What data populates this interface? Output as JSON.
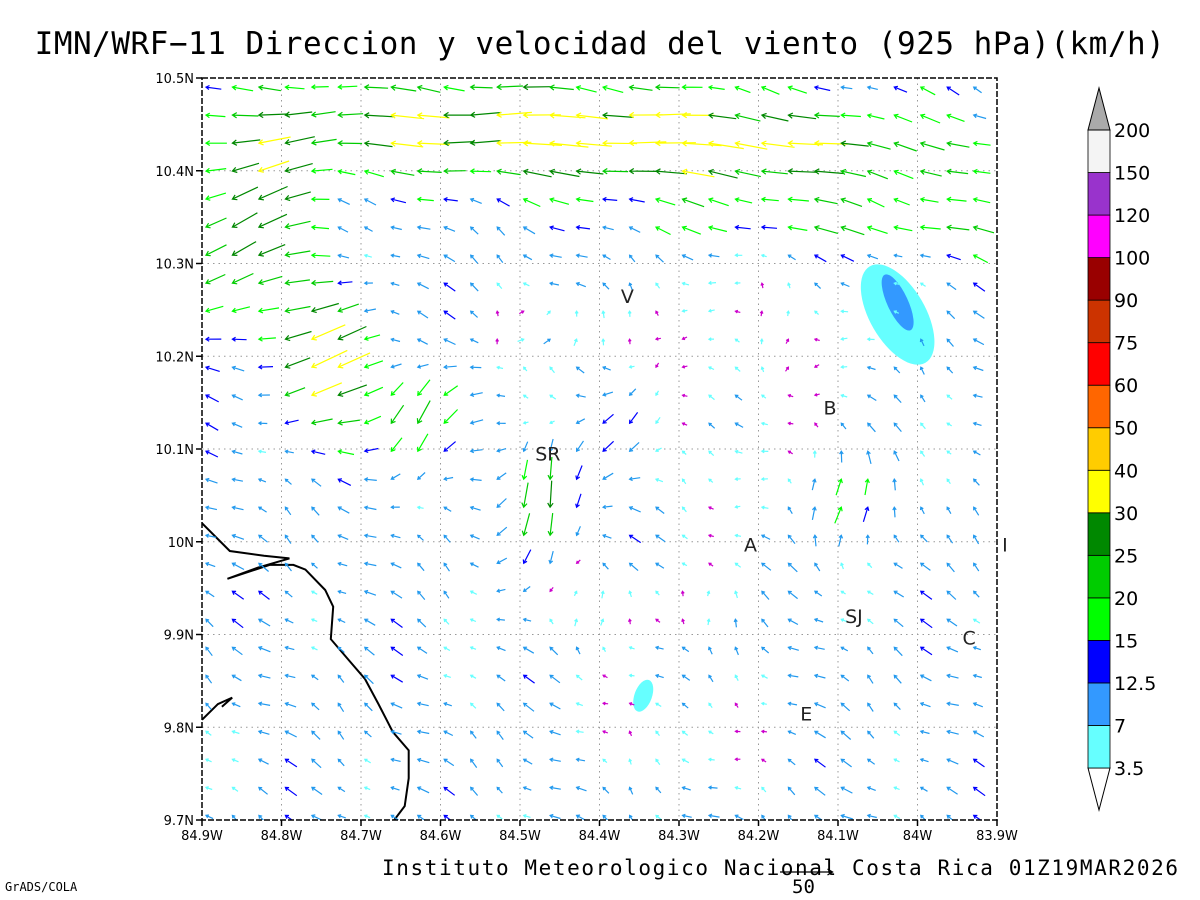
{
  "title": "IMN/WRF−11 Direccion y velocidad del viento (925 hPa)(km/h)",
  "footer": "Instituto Meteorologico Nacional Costa Rica 01Z19MAR2026",
  "credit": "GrADS/COLA",
  "reference_vector": {
    "value": "50",
    "speed_kmh": 50
  },
  "map": {
    "lon_range": [
      -84.9,
      -83.9
    ],
    "lat_range": [
      9.7,
      10.5
    ],
    "x_ticks": [
      {
        "lon": -84.9,
        "label": "84.9W"
      },
      {
        "lon": -84.8,
        "label": "84.8W"
      },
      {
        "lon": -84.7,
        "label": "84.7W"
      },
      {
        "lon": -84.6,
        "label": "84.6W"
      },
      {
        "lon": -84.5,
        "label": "84.5W"
      },
      {
        "lon": -84.4,
        "label": "84.4W"
      },
      {
        "lon": -84.3,
        "label": "84.3W"
      },
      {
        "lon": -84.2,
        "label": "84.2W"
      },
      {
        "lon": -84.1,
        "label": "84.1W"
      },
      {
        "lon": -84.0,
        "label": "84W"
      },
      {
        "lon": -83.9,
        "label": "83.9W"
      }
    ],
    "y_ticks": [
      {
        "lat": 9.7,
        "label": "9.7N"
      },
      {
        "lat": 9.8,
        "label": "9.8N"
      },
      {
        "lat": 9.9,
        "label": "9.9N"
      },
      {
        "lat": 10.0,
        "label": "10N"
      },
      {
        "lat": 10.1,
        "label": "10.1N"
      },
      {
        "lat": 10.2,
        "label": "10.2N"
      },
      {
        "lat": 10.3,
        "label": "10.3N"
      },
      {
        "lat": 10.4,
        "label": "10.4N"
      },
      {
        "lat": 10.5,
        "label": "10.5N"
      }
    ],
    "grid": "dotted",
    "cities": [
      {
        "label": "V",
        "lon": -84.365,
        "lat": 10.265
      },
      {
        "label": "B",
        "lon": -84.11,
        "lat": 10.145
      },
      {
        "label": "SR",
        "lon": -84.465,
        "lat": 10.095
      },
      {
        "label": "A",
        "lon": -84.21,
        "lat": 9.997
      },
      {
        "label": "SJ",
        "lon": -84.08,
        "lat": 9.92
      },
      {
        "label": "C",
        "lon": -83.935,
        "lat": 9.897
      },
      {
        "label": "E",
        "lon": -84.14,
        "lat": 9.815
      },
      {
        "label": "I",
        "lon": -83.89,
        "lat": 9.997
      }
    ],
    "coastline": [
      [
        [
          -84.9,
          10.02
        ],
        [
          -84.865,
          9.99
        ],
        [
          -84.822,
          9.985
        ],
        [
          -84.79,
          9.982
        ],
        [
          -84.83,
          9.972
        ],
        [
          -84.868,
          9.96
        ],
        [
          -84.815,
          9.975
        ],
        [
          -84.785,
          9.975
        ],
        [
          -84.77,
          9.97
        ],
        [
          -84.745,
          9.948
        ],
        [
          -84.735,
          9.93
        ],
        [
          -84.738,
          9.895
        ],
        [
          -84.715,
          9.872
        ],
        [
          -84.695,
          9.852
        ],
        [
          -84.678,
          9.825
        ],
        [
          -84.66,
          9.795
        ],
        [
          -84.64,
          9.775
        ],
        [
          -84.64,
          9.745
        ],
        [
          -84.645,
          9.715
        ],
        [
          -84.66,
          9.698
        ]
      ],
      [
        [
          -84.9,
          9.808
        ],
        [
          -84.88,
          9.825
        ],
        [
          -84.862,
          9.832
        ],
        [
          -84.875,
          9.822
        ]
      ]
    ],
    "speed_blobs": [
      {
        "lon": -84.025,
        "lat": 10.245,
        "rx_deg": 0.035,
        "ry_deg": 0.06,
        "rot": -30,
        "speed": 3.5
      },
      {
        "lon": -84.025,
        "lat": 10.258,
        "rx_deg": 0.013,
        "ry_deg": 0.033,
        "rot": -25,
        "speed": 7
      },
      {
        "lon": -84.345,
        "lat": 9.834,
        "rx_deg": 0.011,
        "ry_deg": 0.018,
        "rot": 20,
        "speed": 3.5
      }
    ]
  },
  "legend": {
    "labels": [
      "3.5",
      "7",
      "12.5",
      "15",
      "20",
      "25",
      "30",
      "40",
      "50",
      "60",
      "75",
      "90",
      "100",
      "120",
      "150",
      "200"
    ],
    "bins": [
      {
        "lo": 0,
        "color": "#ffffff"
      },
      {
        "lo": 3.5,
        "color": "#66ffff"
      },
      {
        "lo": 7,
        "color": "#3399ff"
      },
      {
        "lo": 12.5,
        "color": "#0000ff"
      },
      {
        "lo": 15,
        "color": "#00ff00"
      },
      {
        "lo": 20,
        "color": "#00cc00"
      },
      {
        "lo": 25,
        "color": "#008800"
      },
      {
        "lo": 30,
        "color": "#ffff00"
      },
      {
        "lo": 40,
        "color": "#ffcc00"
      },
      {
        "lo": 50,
        "color": "#ff6600"
      },
      {
        "lo": 60,
        "color": "#ff0000"
      },
      {
        "lo": 75,
        "color": "#cc3300"
      },
      {
        "lo": 90,
        "color": "#990000"
      },
      {
        "lo": 100,
        "color": "#ff00ff"
      },
      {
        "lo": 120,
        "color": "#9933cc"
      },
      {
        "lo": 150,
        "color": "#f4f4f4"
      },
      {
        "lo": 200,
        "color": "#aaaaaa"
      }
    ]
  }
}
